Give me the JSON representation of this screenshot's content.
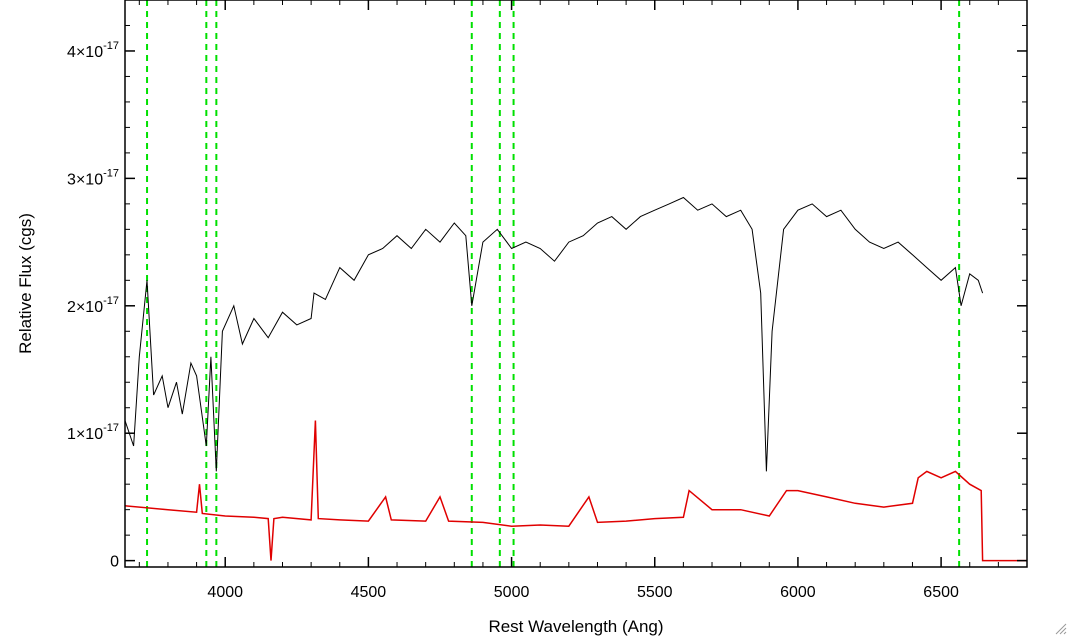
{
  "chart_data": {
    "type": "line",
    "title": "",
    "xlabel": "Rest Wavelength (Ang)",
    "ylabel": "Relative Flux (cgs)",
    "xlim": [
      3650,
      6800
    ],
    "ylim": [
      -5e-19,
      4.4e-17
    ],
    "x_ticks": [
      {
        "value": 4000,
        "label": "4000"
      },
      {
        "value": 4500,
        "label": "4500"
      },
      {
        "value": 5000,
        "label": "5000"
      },
      {
        "value": 5500,
        "label": "5500"
      },
      {
        "value": 6000,
        "label": "6000"
      },
      {
        "value": 6500,
        "label": "6500"
      }
    ],
    "y_ticks": [
      {
        "value": 0,
        "label": "0",
        "mantissa": "",
        "exponent": ""
      },
      {
        "value": 1e-17,
        "label": "",
        "mantissa": "1×10",
        "exponent": "-17"
      },
      {
        "value": 2e-17,
        "label": "",
        "mantissa": "2×10",
        "exponent": "-17"
      },
      {
        "value": 3e-17,
        "label": "",
        "mantissa": "3×10",
        "exponent": "-17"
      },
      {
        "value": 4e-17,
        "label": "",
        "mantissa": "4×10",
        "exponent": "-17"
      }
    ],
    "reference_lines": {
      "color": "#00e000",
      "style": "dashed",
      "wavelengths": [
        3727,
        3934,
        3969,
        4861,
        4959,
        5007,
        6563
      ]
    },
    "series": [
      {
        "color": "#000000",
        "style": "solid",
        "points": [
          [
            3650,
            1.1e-17
          ],
          [
            3680,
            9e-18
          ],
          [
            3700,
            1.6e-17
          ],
          [
            3727,
            2.2e-17
          ],
          [
            3750,
            1.3e-17
          ],
          [
            3780,
            1.45e-17
          ],
          [
            3800,
            1.2e-17
          ],
          [
            3830,
            1.4e-17
          ],
          [
            3850,
            1.15e-17
          ],
          [
            3880,
            1.55e-17
          ],
          [
            3900,
            1.45e-17
          ],
          [
            3934,
            9e-18
          ],
          [
            3950,
            1.6e-17
          ],
          [
            3969,
            7e-18
          ],
          [
            3990,
            1.8e-17
          ],
          [
            4030,
            2e-17
          ],
          [
            4060,
            1.7e-17
          ],
          [
            4100,
            1.9e-17
          ],
          [
            4150,
            1.75e-17
          ],
          [
            4200,
            1.95e-17
          ],
          [
            4250,
            1.85e-17
          ],
          [
            4300,
            1.9e-17
          ],
          [
            4310,
            2.1e-17
          ],
          [
            4350,
            2.05e-17
          ],
          [
            4400,
            2.3e-17
          ],
          [
            4450,
            2.2e-17
          ],
          [
            4500,
            2.4e-17
          ],
          [
            4550,
            2.45e-17
          ],
          [
            4600,
            2.55e-17
          ],
          [
            4650,
            2.45e-17
          ],
          [
            4700,
            2.6e-17
          ],
          [
            4750,
            2.5e-17
          ],
          [
            4800,
            2.65e-17
          ],
          [
            4840,
            2.55e-17
          ],
          [
            4861,
            2e-17
          ],
          [
            4900,
            2.5e-17
          ],
          [
            4950,
            2.6e-17
          ],
          [
            5000,
            2.45e-17
          ],
          [
            5050,
            2.5e-17
          ],
          [
            5100,
            2.45e-17
          ],
          [
            5150,
            2.35e-17
          ],
          [
            5200,
            2.5e-17
          ],
          [
            5250,
            2.55e-17
          ],
          [
            5300,
            2.65e-17
          ],
          [
            5350,
            2.7e-17
          ],
          [
            5400,
            2.6e-17
          ],
          [
            5450,
            2.7e-17
          ],
          [
            5500,
            2.75e-17
          ],
          [
            5550,
            2.8e-17
          ],
          [
            5600,
            2.85e-17
          ],
          [
            5650,
            2.75e-17
          ],
          [
            5700,
            2.8e-17
          ],
          [
            5750,
            2.7e-17
          ],
          [
            5800,
            2.75e-17
          ],
          [
            5840,
            2.6e-17
          ],
          [
            5870,
            2.1e-17
          ],
          [
            5890,
            7e-18
          ],
          [
            5910,
            1.8e-17
          ],
          [
            5950,
            2.6e-17
          ],
          [
            6000,
            2.75e-17
          ],
          [
            6050,
            2.8e-17
          ],
          [
            6100,
            2.7e-17
          ],
          [
            6150,
            2.75e-17
          ],
          [
            6200,
            2.6e-17
          ],
          [
            6250,
            2.5e-17
          ],
          [
            6300,
            2.45e-17
          ],
          [
            6350,
            2.5e-17
          ],
          [
            6400,
            2.4e-17
          ],
          [
            6450,
            2.3e-17
          ],
          [
            6500,
            2.2e-17
          ],
          [
            6550,
            2.3e-17
          ],
          [
            6570,
            2e-17
          ],
          [
            6600,
            2.25e-17
          ],
          [
            6630,
            2.2e-17
          ],
          [
            6645,
            2.1e-17
          ]
        ]
      },
      {
        "color": "#e00000",
        "style": "solid",
        "points": [
          [
            3650,
            4.3e-18
          ],
          [
            3800,
            4e-18
          ],
          [
            3900,
            3.8e-18
          ],
          [
            3910,
            6e-18
          ],
          [
            3920,
            3.7e-18
          ],
          [
            4000,
            3.5e-18
          ],
          [
            4100,
            3.4e-18
          ],
          [
            4150,
            3.3e-18
          ],
          [
            4160,
            0.0
          ],
          [
            4170,
            3.3e-18
          ],
          [
            4200,
            3.4e-18
          ],
          [
            4300,
            3.2e-18
          ],
          [
            4315,
            1.1e-17
          ],
          [
            4325,
            3.3e-18
          ],
          [
            4400,
            3.2e-18
          ],
          [
            4500,
            3.1e-18
          ],
          [
            4560,
            5e-18
          ],
          [
            4580,
            3.2e-18
          ],
          [
            4700,
            3.1e-18
          ],
          [
            4750,
            5e-18
          ],
          [
            4780,
            3.1e-18
          ],
          [
            4900,
            3e-18
          ],
          [
            5000,
            2.7e-18
          ],
          [
            5100,
            2.8e-18
          ],
          [
            5200,
            2.7e-18
          ],
          [
            5270,
            5e-18
          ],
          [
            5300,
            3e-18
          ],
          [
            5400,
            3.1e-18
          ],
          [
            5500,
            3.3e-18
          ],
          [
            5600,
            3.4e-18
          ],
          [
            5620,
            5.5e-18
          ],
          [
            5700,
            4e-18
          ],
          [
            5800,
            4e-18
          ],
          [
            5900,
            3.5e-18
          ],
          [
            5960,
            5.5e-18
          ],
          [
            6000,
            5.5e-18
          ],
          [
            6100,
            5e-18
          ],
          [
            6200,
            4.5e-18
          ],
          [
            6300,
            4.2e-18
          ],
          [
            6400,
            4.5e-18
          ],
          [
            6420,
            6.5e-18
          ],
          [
            6450,
            7e-18
          ],
          [
            6500,
            6.5e-18
          ],
          [
            6550,
            7e-18
          ],
          [
            6600,
            6e-18
          ],
          [
            6640,
            5.5e-18
          ],
          [
            6645,
            0.0
          ],
          [
            6800,
            0.0
          ]
        ]
      }
    ]
  }
}
